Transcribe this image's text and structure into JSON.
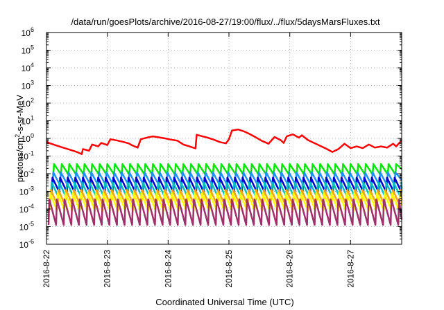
{
  "chart_data": {
    "type": "line",
    "title": "/data/run/goesPlots/archive/2016-08-27/19:00/flux/../flux/5daysMarsFluxes.txt",
    "xlabel": "Coordinated Universal Time (UTC)",
    "ylabel_parts": [
      "protons/cm",
      "2",
      "-s-sr-MeV"
    ],
    "xscale": "linear",
    "yscale": "log",
    "xlim": [
      22.0,
      27.84
    ],
    "ylim": [
      1e-06,
      1000000.0
    ],
    "x_ticks": [
      {
        "x": 22,
        "label": "2016-8-22"
      },
      {
        "x": 23,
        "label": "2016-8-23"
      },
      {
        "x": 24,
        "label": "2016-8-24"
      },
      {
        "x": 25,
        "label": "2016-8-25"
      },
      {
        "x": 26,
        "label": "2016-8-26"
      },
      {
        "x": 27,
        "label": "2016-8-27"
      }
    ],
    "y_ticks": [
      {
        "exp": -6,
        "base": "10",
        "sup": "-6"
      },
      {
        "exp": -5,
        "base": "10",
        "sup": "-5"
      },
      {
        "exp": -4,
        "base": "10",
        "sup": "-4"
      },
      {
        "exp": -3,
        "base": "10",
        "sup": "-3"
      },
      {
        "exp": -2,
        "base": "10",
        "sup": "-2"
      },
      {
        "exp": -1,
        "base": "10",
        "sup": "-1"
      },
      {
        "exp": 0,
        "base": "10",
        "sup": "0"
      },
      {
        "exp": 1,
        "base": "10",
        "sup": "1"
      },
      {
        "exp": 2,
        "base": "10",
        "sup": "2"
      },
      {
        "exp": 3,
        "base": "10",
        "sup": "3"
      },
      {
        "exp": 4,
        "base": "10",
        "sup": "4"
      },
      {
        "exp": 5,
        "base": "10",
        "sup": "5"
      },
      {
        "exp": 6,
        "base": "10",
        "sup": "6"
      }
    ],
    "grid": true,
    "legend": "none",
    "series": [
      {
        "color": "#ff0000",
        "points": [
          [
            22.0,
            0.62
          ],
          [
            22.1,
            0.47
          ],
          [
            22.2,
            0.36
          ],
          [
            22.3,
            0.28
          ],
          [
            22.4,
            0.22
          ],
          [
            22.5,
            0.17
          ],
          [
            22.58,
            0.13
          ],
          [
            22.6,
            0.25
          ],
          [
            22.7,
            0.2
          ],
          [
            22.75,
            0.45
          ],
          [
            22.85,
            0.35
          ],
          [
            22.9,
            0.55
          ],
          [
            23.0,
            0.42
          ],
          [
            23.05,
            0.9
          ],
          [
            23.15,
            0.78
          ],
          [
            23.25,
            0.65
          ],
          [
            23.35,
            0.52
          ],
          [
            23.4,
            0.42
          ],
          [
            23.45,
            0.35
          ],
          [
            23.5,
            0.3
          ],
          [
            23.55,
            0.9
          ],
          [
            23.65,
            1.1
          ],
          [
            23.75,
            1.3
          ],
          [
            23.85,
            1.15
          ],
          [
            23.95,
            1.0
          ],
          [
            24.05,
            0.85
          ],
          [
            24.15,
            0.75
          ],
          [
            24.25,
            0.45
          ],
          [
            24.35,
            0.35
          ],
          [
            24.45,
            0.27
          ],
          [
            24.47,
            1.6
          ],
          [
            24.55,
            1.35
          ],
          [
            24.65,
            1.1
          ],
          [
            24.75,
            0.85
          ],
          [
            24.85,
            0.62
          ],
          [
            24.95,
            0.52
          ],
          [
            25.0,
            0.9
          ],
          [
            25.05,
            2.8
          ],
          [
            25.15,
            3.2
          ],
          [
            25.25,
            2.5
          ],
          [
            25.35,
            1.7
          ],
          [
            25.45,
            1.1
          ],
          [
            25.55,
            0.7
          ],
          [
            25.65,
            0.5
          ],
          [
            25.75,
            1.2
          ],
          [
            25.85,
            0.8
          ],
          [
            25.9,
            0.55
          ],
          [
            25.95,
            1.3
          ],
          [
            26.05,
            1.7
          ],
          [
            26.15,
            1.1
          ],
          [
            26.2,
            1.5
          ],
          [
            26.3,
            0.8
          ],
          [
            26.4,
            0.55
          ],
          [
            26.5,
            0.38
          ],
          [
            26.6,
            0.26
          ],
          [
            26.7,
            0.17
          ],
          [
            26.8,
            0.25
          ],
          [
            26.9,
            0.5
          ],
          [
            27.0,
            0.28
          ],
          [
            27.1,
            0.35
          ],
          [
            27.2,
            0.28
          ],
          [
            27.3,
            0.45
          ],
          [
            27.4,
            0.3
          ],
          [
            27.5,
            0.35
          ],
          [
            27.6,
            0.3
          ],
          [
            27.7,
            0.5
          ],
          [
            27.75,
            0.35
          ],
          [
            27.8,
            0.55
          ],
          [
            27.84,
            0.7
          ]
        ]
      },
      {
        "color": "#00e600",
        "sawtooth": {
          "high": 0.035,
          "low": 0.009
        }
      },
      {
        "color": "#1e90ff",
        "sawtooth": {
          "high": 0.012,
          "low": 0.0022
        }
      },
      {
        "color": "#0000cc",
        "sawtooth": {
          "high": 0.006,
          "low": 0.0009
        }
      },
      {
        "color": "#00bfbf",
        "sawtooth": {
          "high": 0.0032,
          "low": 0.00045
        }
      },
      {
        "color": "#ffa500",
        "sawtooth": {
          "high": 0.0012,
          "low": 0.00015
        }
      },
      {
        "color": "#ffff00",
        "sawtooth": {
          "high": 0.0008,
          "low": 8e-05
        }
      },
      {
        "color": "#a0306a",
        "sawtooth": {
          "high": 0.00035,
          "low": 1.25e-05
        }
      }
    ],
    "sawtooth_period": 0.125
  }
}
